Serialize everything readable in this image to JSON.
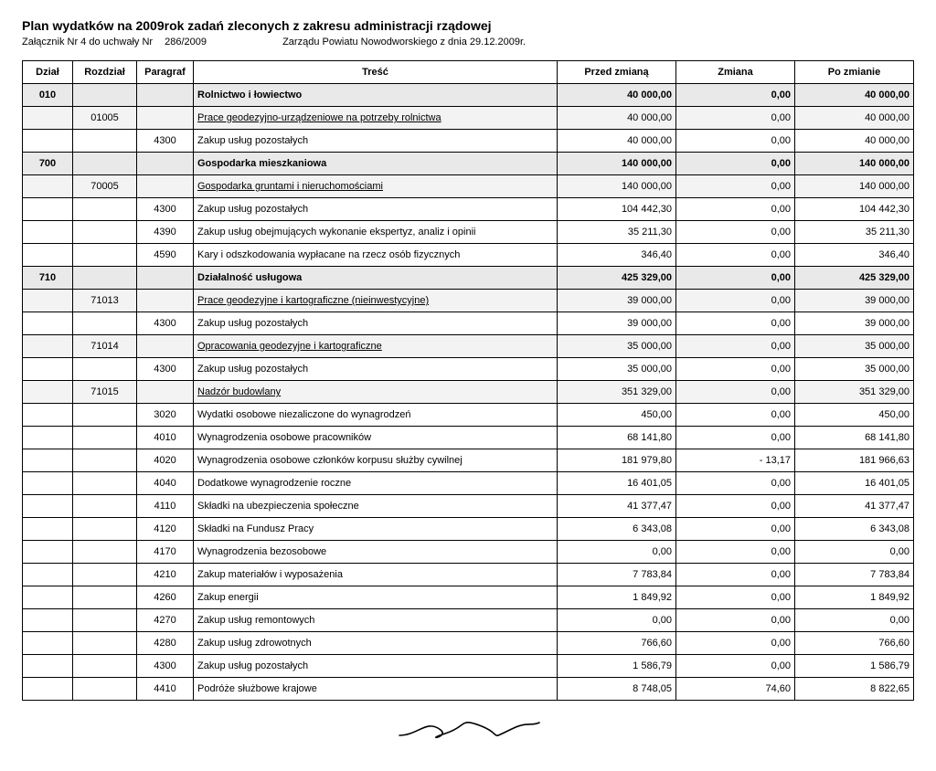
{
  "header": {
    "title": "Plan wydatków na 2009rok zadań zleconych z zakresu administracji rządowej",
    "sub_prefix": "Załącznik Nr  4  do uchwały Nr",
    "sub_num": "286/2009",
    "sub_rest": "Zarządu Powiatu Nowodworskiego z dnia 29.12.2009r."
  },
  "columns": {
    "dzial": "Dział",
    "rozdzial": "Rozdział",
    "paragraf": "Paragraf",
    "tresc": "Treść",
    "przed": "Przed zmianą",
    "zmiana": "Zmiana",
    "po": "Po zmianie"
  },
  "rows": [
    {
      "type": "section",
      "dzial": "010",
      "rozdzial": "",
      "paragraf": "",
      "tresc": "Rolnictwo i łowiectwo",
      "przed": "40 000,00",
      "zmiana": "0,00",
      "po": "40 000,00"
    },
    {
      "type": "sub1",
      "dzial": "",
      "rozdzial": "01005",
      "paragraf": "",
      "tresc": "Prace geodezyjno-urządzeniowe na potrzeby rolnictwa",
      "przed": "40 000,00",
      "zmiana": "0,00",
      "po": "40 000,00",
      "under": true
    },
    {
      "type": "normal",
      "dzial": "",
      "rozdzial": "",
      "paragraf": "4300",
      "tresc": "Zakup usług pozostałych",
      "przed": "40 000,00",
      "zmiana": "0,00",
      "po": "40 000,00"
    },
    {
      "type": "section",
      "dzial": "700",
      "rozdzial": "",
      "paragraf": "",
      "tresc": "Gospodarka mieszkaniowa",
      "przed": "140 000,00",
      "zmiana": "0,00",
      "po": "140 000,00"
    },
    {
      "type": "sub1",
      "dzial": "",
      "rozdzial": "70005",
      "paragraf": "",
      "tresc": "Gospodarka gruntami i nieruchomościami",
      "przed": "140 000,00",
      "zmiana": "0,00",
      "po": "140 000,00",
      "under": true
    },
    {
      "type": "normal",
      "dzial": "",
      "rozdzial": "",
      "paragraf": "4300",
      "tresc": "Zakup usług pozostałych",
      "przed": "104 442,30",
      "zmiana": "0,00",
      "po": "104 442,30"
    },
    {
      "type": "normal",
      "dzial": "",
      "rozdzial": "",
      "paragraf": "4390",
      "tresc": "Zakup usług obejmujących wykonanie ekspertyz, analiz i opinii",
      "przed": "35 211,30",
      "zmiana": "0,00",
      "po": "35 211,30"
    },
    {
      "type": "normal",
      "dzial": "",
      "rozdzial": "",
      "paragraf": "4590",
      "tresc": "Kary i odszkodowania wypłacane na rzecz osób fizycznych",
      "przed": "346,40",
      "zmiana": "0,00",
      "po": "346,40"
    },
    {
      "type": "section",
      "dzial": "710",
      "rozdzial": "",
      "paragraf": "",
      "tresc": "Działalność usługowa",
      "przed": "425 329,00",
      "zmiana": "0,00",
      "po": "425 329,00"
    },
    {
      "type": "sub1",
      "dzial": "",
      "rozdzial": "71013",
      "paragraf": "",
      "tresc": "Prace geodezyjne i kartograficzne (nieinwestycyjne)",
      "przed": "39 000,00",
      "zmiana": "0,00",
      "po": "39 000,00",
      "under": true
    },
    {
      "type": "normal",
      "dzial": "",
      "rozdzial": "",
      "paragraf": "4300",
      "tresc": "Zakup usług pozostałych",
      "przed": "39 000,00",
      "zmiana": "0,00",
      "po": "39 000,00"
    },
    {
      "type": "sub1",
      "dzial": "",
      "rozdzial": "71014",
      "paragraf": "",
      "tresc": "Opracowania geodezyjne i kartograficzne",
      "przed": "35 000,00",
      "zmiana": "0,00",
      "po": "35 000,00",
      "under": true
    },
    {
      "type": "normal",
      "dzial": "",
      "rozdzial": "",
      "paragraf": "4300",
      "tresc": "Zakup usług pozostałych",
      "przed": "35 000,00",
      "zmiana": "0,00",
      "po": "35 000,00"
    },
    {
      "type": "sub1",
      "dzial": "",
      "rozdzial": "71015",
      "paragraf": "",
      "tresc": "Nadzór budowlany",
      "przed": "351 329,00",
      "zmiana": "0,00",
      "po": "351 329,00",
      "under": true
    },
    {
      "type": "normal",
      "dzial": "",
      "rozdzial": "",
      "paragraf": "3020",
      "tresc": "Wydatki osobowe niezaliczone do wynagrodzeń",
      "przed": "450,00",
      "zmiana": "0,00",
      "po": "450,00"
    },
    {
      "type": "normal",
      "dzial": "",
      "rozdzial": "",
      "paragraf": "4010",
      "tresc": "Wynagrodzenia osobowe pracowników",
      "przed": "68 141,80",
      "zmiana": "0,00",
      "po": "68 141,80"
    },
    {
      "type": "normal",
      "dzial": "",
      "rozdzial": "",
      "paragraf": "4020",
      "tresc": "Wynagrodzenia osobowe członków korpusu służby cywilnej",
      "przed": "181 979,80",
      "zmiana": "- 13,17",
      "po": "181 966,63"
    },
    {
      "type": "normal",
      "dzial": "",
      "rozdzial": "",
      "paragraf": "4040",
      "tresc": "Dodatkowe wynagrodzenie roczne",
      "przed": "16 401,05",
      "zmiana": "0,00",
      "po": "16 401,05"
    },
    {
      "type": "normal",
      "dzial": "",
      "rozdzial": "",
      "paragraf": "4110",
      "tresc": "Składki na ubezpieczenia społeczne",
      "przed": "41 377,47",
      "zmiana": "0,00",
      "po": "41 377,47"
    },
    {
      "type": "normal",
      "dzial": "",
      "rozdzial": "",
      "paragraf": "4120",
      "tresc": "Składki na Fundusz Pracy",
      "przed": "6 343,08",
      "zmiana": "0,00",
      "po": "6 343,08"
    },
    {
      "type": "normal",
      "dzial": "",
      "rozdzial": "",
      "paragraf": "4170",
      "tresc": "Wynagrodzenia bezosobowe",
      "przed": "0,00",
      "zmiana": "0,00",
      "po": "0,00"
    },
    {
      "type": "normal",
      "dzial": "",
      "rozdzial": "",
      "paragraf": "4210",
      "tresc": "Zakup materiałów i wyposażenia",
      "przed": "7 783,84",
      "zmiana": "0,00",
      "po": "7 783,84"
    },
    {
      "type": "normal",
      "dzial": "",
      "rozdzial": "",
      "paragraf": "4260",
      "tresc": "Zakup energii",
      "przed": "1 849,92",
      "zmiana": "0,00",
      "po": "1 849,92"
    },
    {
      "type": "normal",
      "dzial": "",
      "rozdzial": "",
      "paragraf": "4270",
      "tresc": "Zakup usług remontowych",
      "przed": "0,00",
      "zmiana": "0,00",
      "po": "0,00"
    },
    {
      "type": "normal",
      "dzial": "",
      "rozdzial": "",
      "paragraf": "4280",
      "tresc": "Zakup usług zdrowotnych",
      "przed": "766,60",
      "zmiana": "0,00",
      "po": "766,60"
    },
    {
      "type": "normal",
      "dzial": "",
      "rozdzial": "",
      "paragraf": "4300",
      "tresc": "Zakup usług pozostałych",
      "przed": "1 586,79",
      "zmiana": "0,00",
      "po": "1 586,79"
    },
    {
      "type": "normal",
      "dzial": "",
      "rozdzial": "",
      "paragraf": "4410",
      "tresc": "Podróże służbowe krajowe",
      "przed": "8 748,05",
      "zmiana": "74,60",
      "po": "8 822,65"
    }
  ],
  "styling": {
    "section_bg": "#e9e9e9",
    "sub_bg": "#f3f3f3",
    "normal_bg": "#ffffff",
    "border_color": "#000000",
    "title_fontsize": 14,
    "body_fontsize": 11
  }
}
